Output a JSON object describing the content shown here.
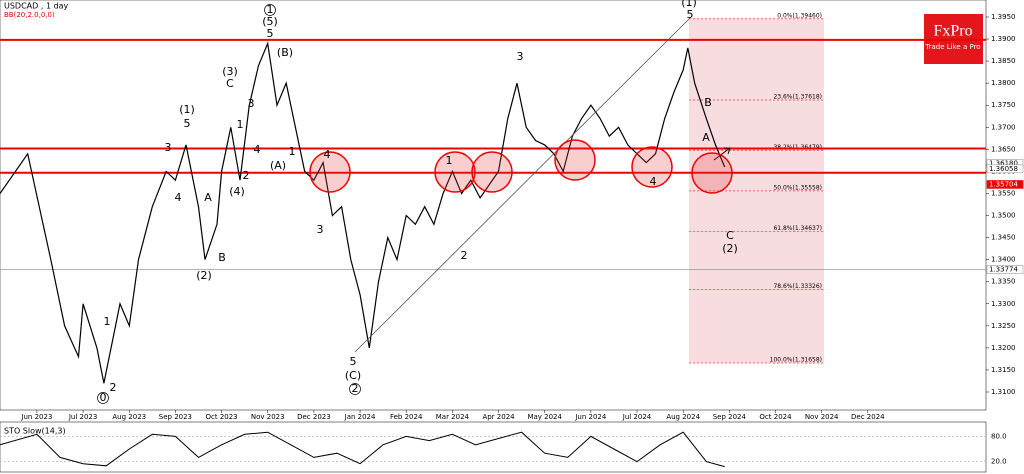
{
  "chart_data": {
    "type": "line",
    "title": "USDCAD , 1 day",
    "subtitle": "BB(20,2.0,0,0)",
    "brand": "FxPro",
    "tagline": "Trade Like a Pro",
    "color": "#000000",
    "x": [
      -0.8,
      -0.2,
      0.3,
      0.6,
      0.9,
      1.0,
      1.3,
      1.45,
      1.8,
      2.0,
      2.2,
      2.5,
      2.8,
      3.0,
      3.23,
      3.5,
      3.64,
      3.9,
      4.0,
      4.2,
      4.4,
      4.6,
      4.8,
      5.0,
      5.2,
      5.4,
      5.6,
      5.8,
      6.0,
      6.2,
      6.4,
      6.6,
      6.8,
      7.0,
      7.2,
      7.4,
      7.6,
      7.8,
      8.0,
      8.2,
      8.4,
      8.6,
      8.8,
      9.0,
      9.2,
      9.4,
      9.6,
      9.8,
      10.0,
      10.2,
      10.4,
      10.6,
      10.8,
      11.0,
      11.2,
      11.4,
      11.6,
      11.8,
      12.0,
      12.2,
      12.4,
      12.6,
      12.8,
      13.0,
      13.2,
      13.4,
      13.6,
      13.8,
      14.0,
      14.1,
      14.25,
      14.5,
      14.7,
      14.9
    ],
    "values": [
      1.355,
      1.364,
      1.34,
      1.325,
      1.318,
      1.33,
      1.32,
      1.312,
      1.33,
      1.325,
      1.34,
      1.352,
      1.36,
      1.358,
      1.366,
      1.352,
      1.34,
      1.348,
      1.36,
      1.37,
      1.358,
      1.375,
      1.384,
      1.389,
      1.375,
      1.38,
      1.37,
      1.36,
      1.358,
      1.362,
      1.35,
      1.352,
      1.34,
      1.332,
      1.32,
      1.335,
      1.345,
      1.34,
      1.35,
      1.348,
      1.352,
      1.348,
      1.355,
      1.36,
      1.355,
      1.358,
      1.354,
      1.357,
      1.36,
      1.372,
      1.38,
      1.37,
      1.367,
      1.366,
      1.364,
      1.36,
      1.368,
      1.372,
      1.375,
      1.372,
      1.368,
      1.37,
      1.366,
      1.364,
      1.362,
      1.364,
      1.372,
      1.378,
      1.383,
      1.388,
      1.38,
      1.372,
      1.366,
      1.361
    ],
    "xlim": [
      -0.8,
      20.56
    ],
    "xticks": [
      {
        "value": 0,
        "label": "Jun 2023"
      },
      {
        "value": 1,
        "label": "Jul 2023"
      },
      {
        "value": 2,
        "label": "Aug 2023"
      },
      {
        "value": 3,
        "label": "Sep 2023"
      },
      {
        "value": 4,
        "label": "Oct 2023"
      },
      {
        "value": 5,
        "label": "Nov 2023"
      },
      {
        "value": 6,
        "label": "Dec 2023"
      },
      {
        "value": 7,
        "label": "Jan 2024"
      },
      {
        "value": 8,
        "label": "Feb 2024"
      },
      {
        "value": 9,
        "label": "Mar 2024"
      },
      {
        "value": 10,
        "label": "Apr 2024"
      },
      {
        "value": 11,
        "label": "May 2024"
      },
      {
        "value": 12,
        "label": "Jun 2024"
      },
      {
        "value": 13,
        "label": "Jul 2024"
      },
      {
        "value": 14,
        "label": "Aug 2024"
      },
      {
        "value": 15,
        "label": "Sep 2024"
      },
      {
        "value": 16,
        "label": "Oct 2024"
      },
      {
        "value": 17,
        "label": "Nov 2024"
      },
      {
        "value": 18,
        "label": "Dec 2024"
      }
    ],
    "ylim": [
      1.30592,
      1.39885
    ],
    "yticks": [
      {
        "value": 1.395,
        "label": "1.3950"
      },
      {
        "value": 1.39,
        "label": "1.3900"
      },
      {
        "value": 1.385,
        "label": "1.3850"
      },
      {
        "value": 1.38,
        "label": "1.3800"
      },
      {
        "value": 1.375,
        "label": "1.3750"
      },
      {
        "value": 1.37,
        "label": "1.3700"
      },
      {
        "value": 1.365,
        "label": "1.3650"
      },
      {
        "value": 1.36,
        "label": "1.3600"
      },
      {
        "value": 1.355,
        "label": "1.3550"
      },
      {
        "value": 1.35,
        "label": "1.3500"
      },
      {
        "value": 1.345,
        "label": "1.3450"
      },
      {
        "value": 1.34,
        "label": "1.3400"
      },
      {
        "value": 1.335,
        "label": "1.3350"
      },
      {
        "value": 1.33,
        "label": "1.3300"
      },
      {
        "value": 1.325,
        "label": "1.3250"
      },
      {
        "value": 1.32,
        "label": "1.3200"
      },
      {
        "value": 1.315,
        "label": "1.3150"
      },
      {
        "value": 1.31,
        "label": "1.3100"
      }
    ],
    "hlines": [
      1.3898,
      1.3652,
      1.3597
    ],
    "support_line": 1.33774,
    "price_tags": [
      {
        "value": 1.3618,
        "label": "1.36180"
      },
      {
        "value": 1.36058,
        "label": "1.36058"
      },
      {
        "value": 1.35704,
        "label": "1.35704"
      },
      {
        "value": 1.33774,
        "label": "1.33774"
      }
    ],
    "fib_levels": [
      {
        "value": 1.3946,
        "label": "0.0%(1.39460)"
      },
      {
        "value": 1.37618,
        "label": "23.6%(1.37618)"
      },
      {
        "value": 1.36479,
        "label": "38.2%(1.36479)"
      },
      {
        "value": 1.35558,
        "label": "50.0%(1.35558)"
      },
      {
        "value": 1.34637,
        "label": "61.8%(1.34637)"
      },
      {
        "value": 1.33326,
        "label": "78.6%(1.33326)"
      },
      {
        "value": 1.31658,
        "label": "100.0%(1.31658)"
      }
    ],
    "annotations": [
      "0",
      "1",
      "2",
      "(1)",
      "5",
      "3",
      "4",
      "A",
      "B",
      "(2)",
      "(3)",
      "C",
      "3",
      "(4)",
      "2",
      "4",
      "1",
      "1",
      "(5)",
      "5",
      "(B)",
      "1",
      "(A)",
      "4",
      "3",
      "5",
      "(C)",
      "2",
      "2",
      "1",
      "3",
      "4",
      "(1)",
      "5",
      "B",
      "A",
      "C",
      "(2)"
    ],
    "oscillator": {
      "title": "STO Slow(14,3)",
      "color": "#000000",
      "x": [
        -0.8,
        0,
        0.5,
        1.0,
        1.5,
        2.0,
        2.5,
        3.0,
        3.5,
        4.0,
        4.5,
        5.0,
        5.5,
        6.0,
        6.5,
        7.0,
        7.5,
        8.0,
        8.5,
        9.0,
        9.5,
        10.0,
        10.5,
        11.0,
        11.5,
        12.0,
        12.5,
        13.0,
        13.5,
        14.0,
        14.5,
        14.9
      ],
      "values": [
        60,
        85,
        30,
        15,
        10,
        50,
        85,
        80,
        30,
        60,
        85,
        90,
        60,
        30,
        40,
        15,
        60,
        80,
        70,
        85,
        60,
        75,
        90,
        40,
        30,
        80,
        50,
        20,
        60,
        90,
        20,
        8
      ],
      "ylim": [
        0,
        100
      ],
      "yticks": [
        {
          "value": 80,
          "label": "80.0"
        },
        {
          "value": 20,
          "label": "20.0"
        }
      ]
    }
  }
}
